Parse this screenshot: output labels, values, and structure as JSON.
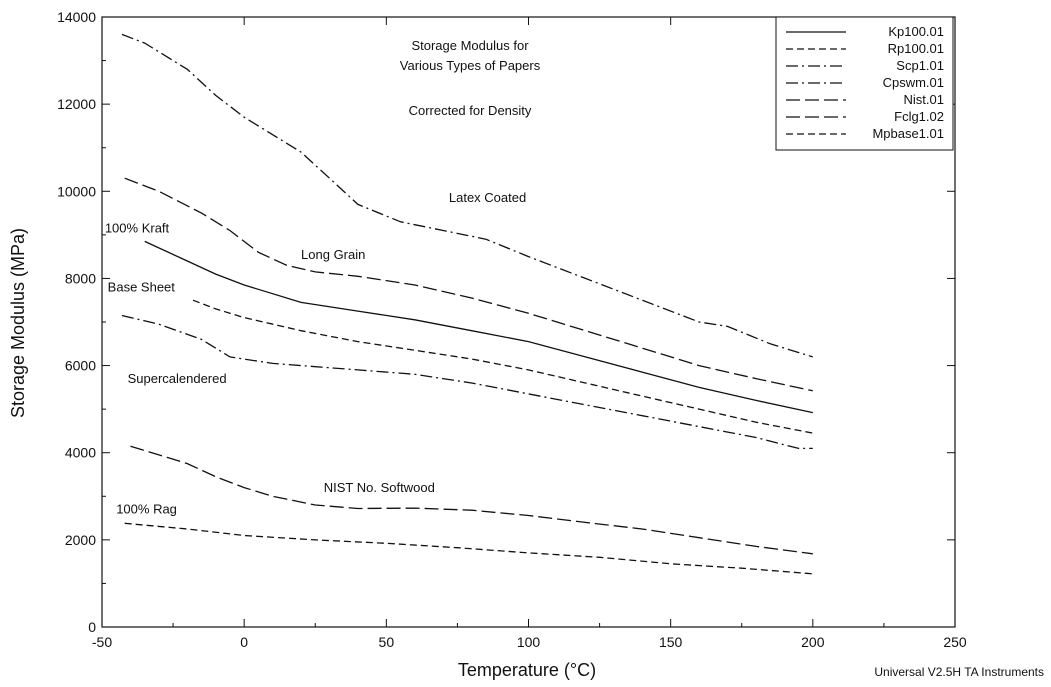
{
  "chart_data": {
    "type": "line",
    "title": "Storage Modulus for",
    "subtitle": "Various Types of Papers",
    "note": "Corrected for Density",
    "xlabel": "Temperature (°C)",
    "ylabel": "Storage Modulus (MPa)",
    "xlim": [
      -50,
      250
    ],
    "ylim": [
      0,
      14000
    ],
    "xticks": [
      -50,
      0,
      50,
      100,
      150,
      200,
      250
    ],
    "yticks": [
      0,
      2000,
      4000,
      6000,
      8000,
      10000,
      12000,
      14000
    ],
    "grid": false,
    "legend_position": "top-right",
    "footer": "Universal V2.5H TA Instruments",
    "series": [
      {
        "name": "Kp100.01",
        "dash": "solid",
        "points": [
          [
            -35,
            8850
          ],
          [
            -20,
            8400
          ],
          [
            -10,
            8100
          ],
          [
            0,
            7850
          ],
          [
            20,
            7450
          ],
          [
            40,
            7250
          ],
          [
            60,
            7050
          ],
          [
            80,
            6800
          ],
          [
            100,
            6550
          ],
          [
            120,
            6200
          ],
          [
            140,
            5850
          ],
          [
            160,
            5500
          ],
          [
            180,
            5200
          ],
          [
            200,
            4920
          ]
        ]
      },
      {
        "name": "Rp100.01",
        "dash": "dashed",
        "points": [
          [
            -42,
            2380
          ],
          [
            -20,
            2250
          ],
          [
            0,
            2100
          ],
          [
            25,
            2000
          ],
          [
            50,
            1920
          ],
          [
            75,
            1820
          ],
          [
            100,
            1700
          ],
          [
            125,
            1600
          ],
          [
            150,
            1450
          ],
          [
            175,
            1350
          ],
          [
            200,
            1220
          ]
        ]
      },
      {
        "name": "Scp1.01",
        "dash": "dashdot",
        "points": [
          [
            -43,
            7150
          ],
          [
            -30,
            6950
          ],
          [
            -15,
            6600
          ],
          [
            -5,
            6200
          ],
          [
            10,
            6050
          ],
          [
            20,
            6000
          ],
          [
            40,
            5900
          ],
          [
            60,
            5800
          ],
          [
            80,
            5600
          ],
          [
            100,
            5350
          ],
          [
            120,
            5100
          ],
          [
            140,
            4850
          ],
          [
            160,
            4600
          ],
          [
            180,
            4350
          ],
          [
            195,
            4100
          ],
          [
            200,
            4100
          ]
        ]
      },
      {
        "name": "Cpswm.01",
        "dash": "dashdot",
        "points": [
          [
            -43,
            13600
          ],
          [
            -35,
            13400
          ],
          [
            -20,
            12800
          ],
          [
            -10,
            12200
          ],
          [
            0,
            11700
          ],
          [
            20,
            10900
          ],
          [
            30,
            10300
          ],
          [
            40,
            9700
          ],
          [
            55,
            9300
          ],
          [
            70,
            9100
          ],
          [
            85,
            8900
          ],
          [
            100,
            8500
          ],
          [
            120,
            8000
          ],
          [
            140,
            7500
          ],
          [
            160,
            7000
          ],
          [
            170,
            6900
          ],
          [
            185,
            6500
          ],
          [
            200,
            6200
          ]
        ]
      },
      {
        "name": "Nist.01",
        "dash": "longdash",
        "points": [
          [
            -40,
            4150
          ],
          [
            -30,
            3950
          ],
          [
            -20,
            3750
          ],
          [
            -10,
            3450
          ],
          [
            0,
            3200
          ],
          [
            10,
            3000
          ],
          [
            25,
            2800
          ],
          [
            40,
            2720
          ],
          [
            60,
            2730
          ],
          [
            80,
            2680
          ],
          [
            100,
            2560
          ],
          [
            120,
            2400
          ],
          [
            140,
            2250
          ],
          [
            160,
            2050
          ],
          [
            180,
            1850
          ],
          [
            200,
            1680
          ]
        ]
      },
      {
        "name": "Fclg1.02",
        "dash": "longdash",
        "points": [
          [
            -42,
            10300
          ],
          [
            -30,
            10000
          ],
          [
            -15,
            9500
          ],
          [
            -5,
            9100
          ],
          [
            5,
            8600
          ],
          [
            15,
            8300
          ],
          [
            25,
            8150
          ],
          [
            40,
            8050
          ],
          [
            60,
            7850
          ],
          [
            80,
            7550
          ],
          [
            100,
            7200
          ],
          [
            120,
            6800
          ],
          [
            140,
            6400
          ],
          [
            160,
            6000
          ],
          [
            180,
            5700
          ],
          [
            200,
            5420
          ]
        ]
      },
      {
        "name": "Mpbase1.01",
        "dash": "dashed",
        "points": [
          [
            -18,
            7500
          ],
          [
            -10,
            7300
          ],
          [
            0,
            7100
          ],
          [
            20,
            6800
          ],
          [
            40,
            6550
          ],
          [
            60,
            6350
          ],
          [
            80,
            6150
          ],
          [
            100,
            5900
          ],
          [
            120,
            5600
          ],
          [
            140,
            5300
          ],
          [
            160,
            5000
          ],
          [
            180,
            4700
          ],
          [
            200,
            4450
          ]
        ]
      }
    ],
    "annotations": [
      {
        "text": "Latex Coated",
        "x": 72,
        "y": 9750
      },
      {
        "text": "100% Kraft",
        "x": -49,
        "y": 9050
      },
      {
        "text": "Long Grain",
        "x": 20,
        "y": 8450
      },
      {
        "text": "Base Sheet",
        "x": -48,
        "y": 7700
      },
      {
        "text": "Supercalendered",
        "x": -41,
        "y": 5600
      },
      {
        "text": "NIST No. Softwood",
        "x": 28,
        "y": 3100
      },
      {
        "text": "100% Rag",
        "x": -45,
        "y": 2600
      }
    ]
  }
}
